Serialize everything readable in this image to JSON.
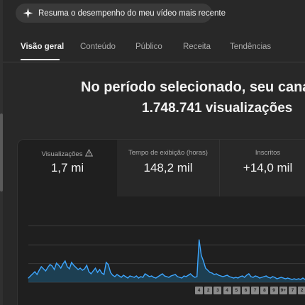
{
  "summary_chip": {
    "label": "Resuma o desempenho do meu vídeo mais recente",
    "icon": "sparkle-icon"
  },
  "tabs": [
    {
      "label": "Visão geral",
      "active": true
    },
    {
      "label": "Conteúdo",
      "active": false
    },
    {
      "label": "Público",
      "active": false
    },
    {
      "label": "Receita",
      "active": false
    },
    {
      "label": "Tendências",
      "active": false
    }
  ],
  "headline": {
    "line1": "No período selecionado, seu canal r",
    "line2": "1.748.741 visualizações"
  },
  "metrics": [
    {
      "label": "Visualizações",
      "value": "1,7 mi",
      "icon": "warning-icon",
      "selected": true
    },
    {
      "label": "Tempo de exibição (horas)",
      "value": "148,2 mil",
      "selected": false
    },
    {
      "label": "Inscritos",
      "value": "+14,0 mil",
      "selected": false
    }
  ],
  "markers": [
    "4",
    "2",
    "3",
    "4",
    "5",
    "6",
    "7",
    "8",
    "9",
    "9+",
    "7",
    "2"
  ],
  "colors": {
    "line": "#3ea6ff",
    "fill": "#1c5a7c",
    "background": "#282828",
    "card": "#1f1f1f"
  },
  "chart_data": {
    "type": "area",
    "series": [
      {
        "values": [
          6,
          9,
          12,
          15,
          11,
          17,
          22,
          19,
          16,
          21,
          25,
          23,
          18,
          27,
          24,
          20,
          26,
          30,
          22,
          19,
          28,
          24,
          21,
          18,
          20,
          17,
          19,
          24,
          15,
          12,
          16,
          20,
          14,
          18,
          13,
          11,
          28,
          25,
          14,
          10,
          8,
          11,
          9,
          7,
          10,
          8,
          6,
          9,
          8,
          7,
          9,
          6,
          8,
          7,
          12,
          10,
          8,
          9,
          7,
          6,
          8,
          10,
          12,
          9,
          8,
          7,
          9,
          10,
          11,
          8,
          7,
          6,
          9,
          8,
          10,
          12,
          9,
          7,
          8,
          60,
          38,
          30,
          20,
          17,
          14,
          13,
          11,
          12,
          10,
          9,
          8,
          9,
          10,
          8,
          7,
          6,
          7,
          6,
          8,
          9,
          7,
          10,
          12,
          8,
          7,
          9,
          8,
          6,
          7,
          8,
          9,
          7,
          6,
          8,
          7,
          5,
          6,
          7,
          6,
          5,
          6,
          5,
          4,
          5,
          4,
          5,
          4,
          6,
          4
        ]
      }
    ],
    "ylim": [
      0,
      80
    ],
    "grid": true
  }
}
